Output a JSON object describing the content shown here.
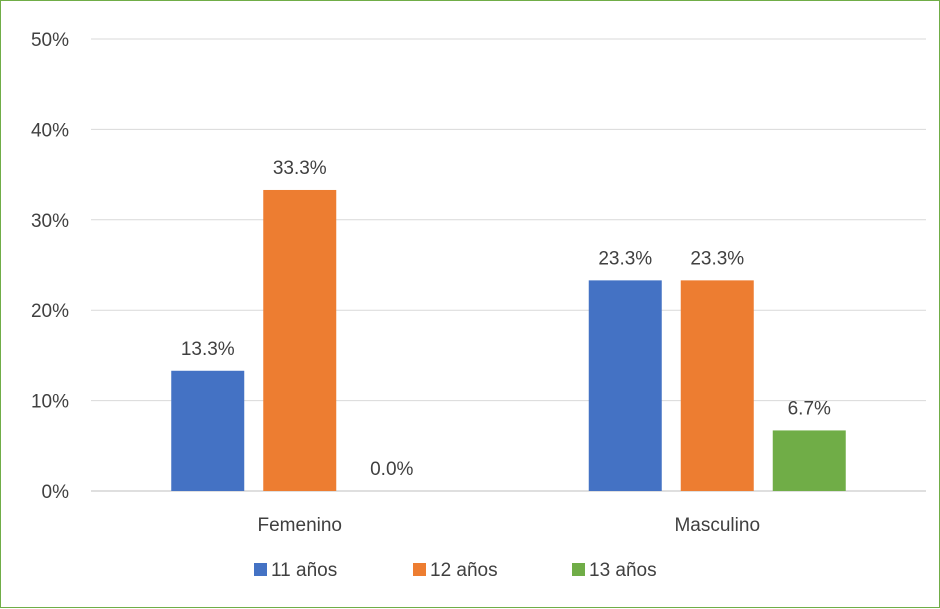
{
  "chart_data": {
    "type": "bar",
    "categories": [
      "Femenino",
      "Masculino"
    ],
    "series": [
      {
        "name": "11 años",
        "values": [
          13.3,
          23.3
        ],
        "labels": [
          "13.3%",
          "23.3%"
        ],
        "color": "#4472c4"
      },
      {
        "name": "12 años",
        "values": [
          33.3,
          23.3
        ],
        "labels": [
          "33.3%",
          "23.3%"
        ],
        "color": "#ed7d31"
      },
      {
        "name": "13 años",
        "values": [
          0.0,
          6.7
        ],
        "labels": [
          "0.0%",
          "6.7%"
        ],
        "color": "#70ad47"
      }
    ],
    "y_ticks": [
      "0%",
      "10%",
      "20%",
      "30%",
      "40%",
      "50%"
    ],
    "ylim": [
      0,
      50
    ],
    "title": "",
    "xlabel": "",
    "ylabel": "",
    "grid": true,
    "legend_position": "bottom"
  },
  "colors": {
    "border": "#70ad47",
    "gridline": "#d9d9d9",
    "axis": "#bfbfbf",
    "text": "#404040"
  }
}
